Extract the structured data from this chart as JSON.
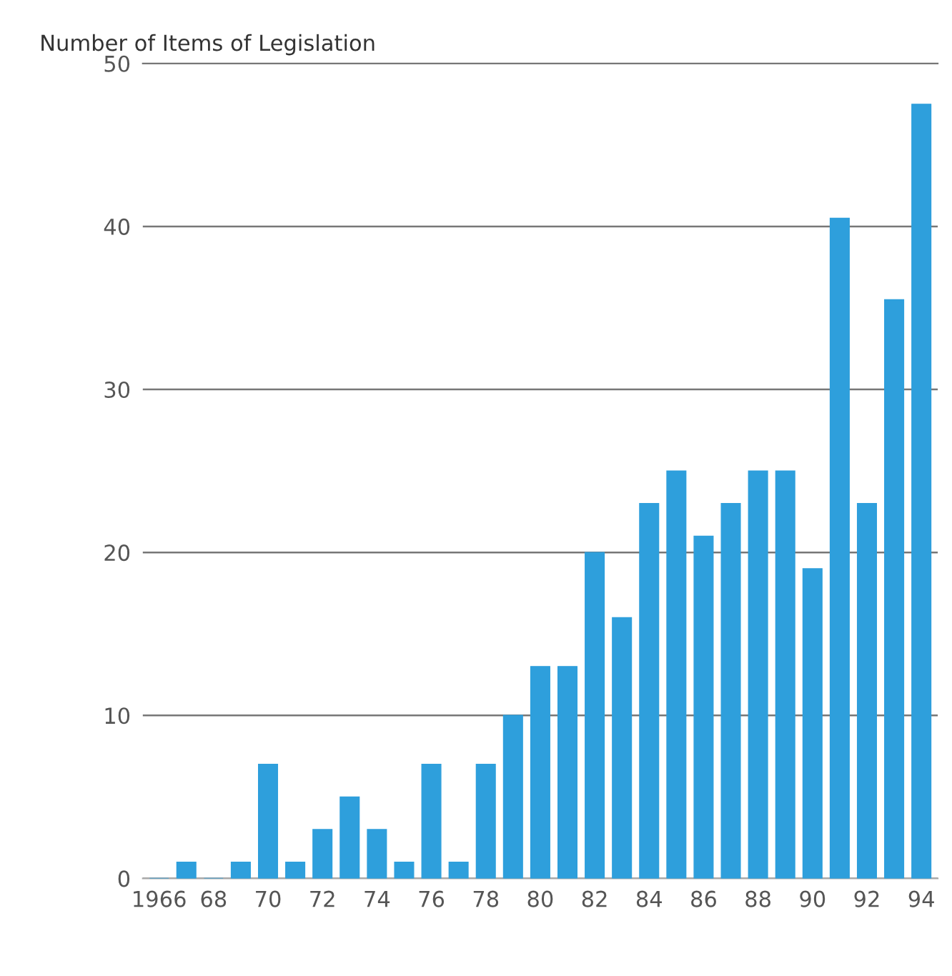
{
  "chart_data": {
    "type": "bar",
    "ylabel": "Number of Items of Legislation",
    "categories": [
      "1966",
      null,
      "68",
      null,
      "70",
      null,
      "72",
      null,
      "74",
      null,
      "76",
      null,
      "78",
      null,
      "80",
      null,
      "82",
      null,
      "84",
      null,
      "86",
      null,
      "88",
      null,
      "90",
      null,
      "92",
      null,
      "94"
    ],
    "values": [
      0,
      1,
      0,
      1,
      7,
      1,
      3,
      5,
      3,
      1,
      7,
      1,
      7,
      10,
      13,
      13,
      20,
      16,
      23,
      25,
      21,
      23,
      25,
      25,
      19,
      40.5,
      23,
      35.5,
      47.5
    ],
    "color": "#2e9fdc",
    "ylim": [
      0,
      50
    ],
    "yticks": [
      0,
      10,
      20,
      30,
      40,
      50
    ],
    "grid": "y"
  }
}
